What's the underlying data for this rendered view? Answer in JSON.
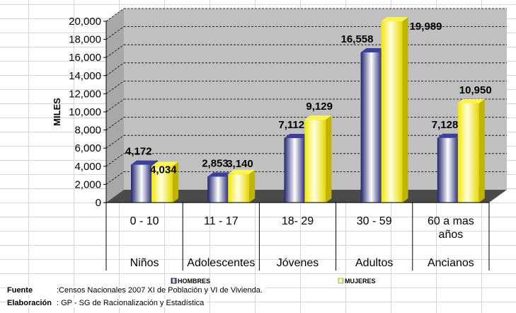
{
  "chart_data": {
    "type": "bar",
    "ylabel": "MILES",
    "ylim": [
      0,
      20000
    ],
    "y_ticks": [
      "0",
      "2,000",
      "4,000",
      "6,000",
      "8,000",
      "10,000",
      "12,000",
      "14,000",
      "16,000",
      "18,000",
      "20,000"
    ],
    "categories": [
      "0 - 10",
      "11 - 17",
      "18- 29",
      "30 - 59",
      "60 a mas años"
    ],
    "groups": [
      "Niños",
      "Adolescentes",
      "Jóvenes",
      "Adultos",
      "Ancianos"
    ],
    "series": [
      {
        "name": "HOMBRES",
        "values": [
          4172,
          2853,
          7112,
          16558,
          7128
        ],
        "labels": [
          "4,172",
          "2,853",
          "7,112",
          "16,558",
          "7,128"
        ]
      },
      {
        "name": "MUJERES",
        "values": [
          4034,
          3140,
          9129,
          19989,
          10950
        ],
        "labels": [
          "4,034",
          "3,140",
          "9,129",
          "19,989",
          "10,950"
        ]
      }
    ],
    "legend_position": "bottom"
  },
  "colors": {
    "hombres": "#2b2f8a",
    "mujeres": "#fff200",
    "wall": "#bdbdbd",
    "floor": "#3a3a3a"
  },
  "footer": {
    "fuente_label": "Fuente",
    "fuente_text": ":Censos Nacionales 2007 XI de Población y VI de Vivienda.",
    "elaboracion_label": "Elaboración",
    "elaboracion_text": ": GP - SG de Racionalización y Estadística"
  }
}
